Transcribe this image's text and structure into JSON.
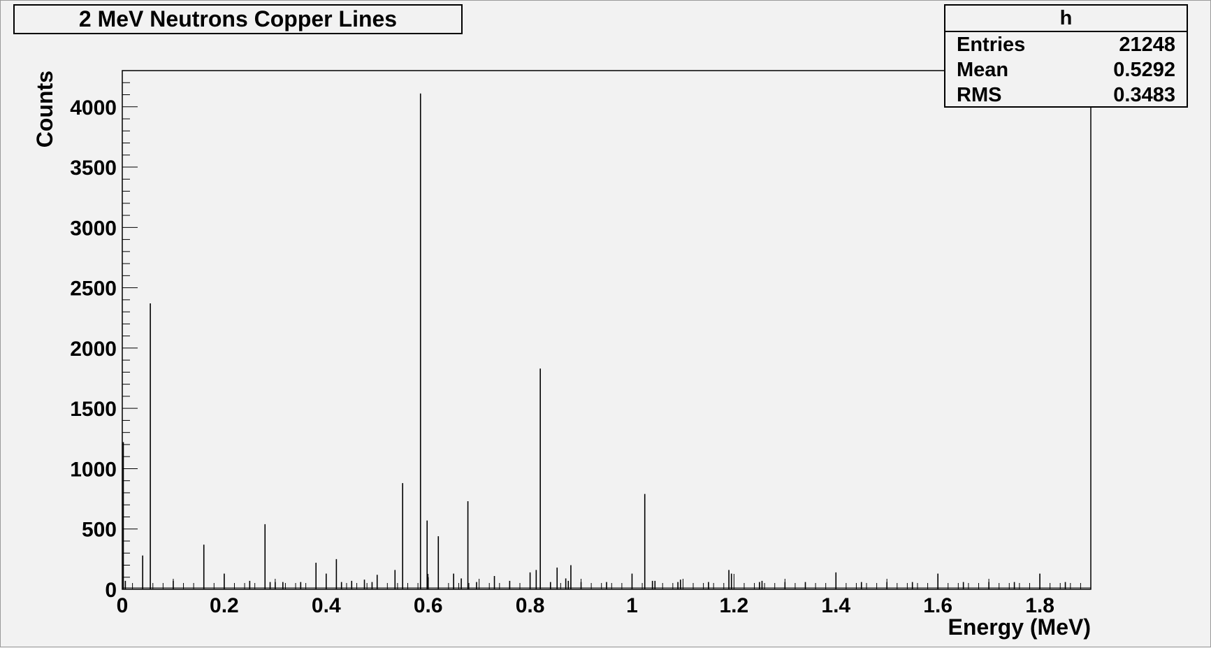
{
  "title": "2 MeV Neutrons Copper Lines",
  "stats": {
    "name": "h",
    "rows": [
      {
        "label": "Entries",
        "value": "21248"
      },
      {
        "label": "Mean",
        "value": "0.5292"
      },
      {
        "label": "RMS",
        "value": "0.3483"
      }
    ]
  },
  "chart_data": {
    "type": "bar",
    "title": "2 MeV Neutrons Copper Lines",
    "xlabel": "Energy (MeV)",
    "ylabel": "Counts",
    "xlim": [
      0,
      1.9
    ],
    "ylim": [
      0,
      4300
    ],
    "x_ticks": [
      "0",
      "0.2",
      "0.4",
      "0.6",
      "0.8",
      "1",
      "1.2",
      "1.4",
      "1.6",
      "1.8"
    ],
    "y_ticks": [
      "0",
      "500",
      "1000",
      "1500",
      "2000",
      "2500",
      "3000",
      "3500",
      "4000"
    ],
    "grid": false,
    "series": [
      {
        "x": [
          0.002,
          0.006,
          0.04,
          0.055,
          0.1,
          0.16,
          0.2,
          0.25,
          0.28,
          0.29,
          0.3,
          0.315,
          0.35,
          0.38,
          0.4,
          0.42,
          0.43,
          0.45,
          0.475,
          0.49,
          0.5,
          0.535,
          0.55,
          0.585,
          0.598,
          0.6,
          0.62,
          0.65,
          0.665,
          0.678,
          0.695,
          0.73,
          0.76,
          0.8,
          0.812,
          0.82,
          0.84,
          0.853,
          0.87,
          0.875,
          0.88,
          0.9,
          0.95,
          1.0,
          1.025,
          1.04,
          1.045,
          1.09,
          1.095,
          1.15,
          1.19,
          1.195,
          1.25,
          1.255,
          1.3,
          1.34,
          1.4,
          1.45,
          1.5,
          1.55,
          1.6,
          1.65,
          1.7,
          1.75,
          1.8,
          1.85
        ],
        "values": [
          1220,
          70,
          280,
          2370,
          70,
          370,
          130,
          70,
          540,
          60,
          60,
          60,
          60,
          220,
          130,
          250,
          60,
          70,
          80,
          60,
          120,
          160,
          880,
          4110,
          570,
          100,
          440,
          130,
          90,
          730,
          60,
          110,
          70,
          140,
          160,
          1830,
          60,
          180,
          90,
          70,
          200,
          60,
          60,
          130,
          790,
          70,
          70,
          60,
          80,
          60,
          160,
          130,
          60,
          70,
          60,
          60,
          140,
          60,
          60,
          60,
          130,
          60,
          60,
          60,
          130,
          60
        ]
      }
    ]
  }
}
